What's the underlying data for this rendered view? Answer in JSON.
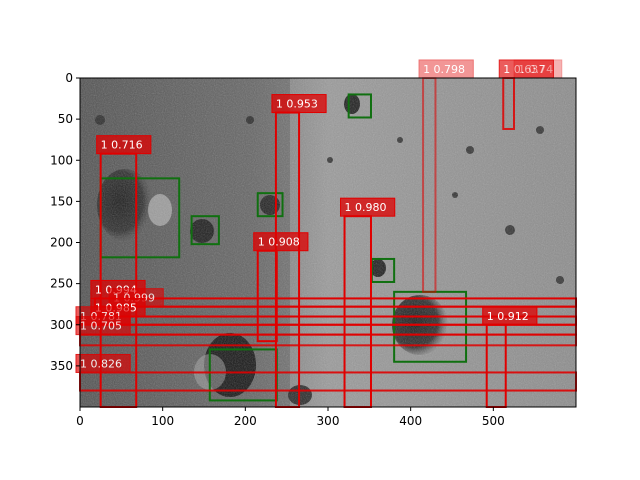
{
  "image": {
    "description_icon": "lunar-surface-photo",
    "width_units": 600,
    "height_units": 400
  },
  "axes": {
    "x_ticks": [
      "0",
      "100",
      "200",
      "300",
      "400",
      "500"
    ],
    "x_tick_values": [
      0,
      100,
      200,
      300,
      400,
      500
    ],
    "y_ticks": [
      "0",
      "50",
      "100",
      "150",
      "200",
      "250",
      "300",
      "350"
    ],
    "y_tick_values": [
      0,
      50,
      100,
      150,
      200,
      250,
      300,
      350
    ],
    "xlim": [
      0,
      600
    ],
    "ylim": [
      400,
      0
    ]
  },
  "colors": {
    "prediction": "#e00000",
    "ground_truth": "#107010"
  },
  "ground_truth_boxes": [
    {
      "x1": 25,
      "y1": 122,
      "x2": 120,
      "y2": 218
    },
    {
      "x1": 135,
      "y1": 168,
      "x2": 168,
      "y2": 202
    },
    {
      "x1": 215,
      "y1": 140,
      "x2": 245,
      "y2": 168
    },
    {
      "x1": 325,
      "y1": 20,
      "x2": 352,
      "y2": 48
    },
    {
      "x1": 353,
      "y1": 220,
      "x2": 380,
      "y2": 248
    },
    {
      "x1": 380,
      "y1": 260,
      "x2": 467,
      "y2": 345
    },
    {
      "x1": 157,
      "y1": 330,
      "x2": 238,
      "y2": 392
    }
  ],
  "predictions": [
    {
      "label": "1 0.716",
      "x1": 25,
      "y1": 92,
      "x2": 68,
      "y2": 400,
      "alpha": 1.0
    },
    {
      "label": "1 0.953",
      "x1": 237,
      "y1": 42,
      "x2": 265,
      "y2": 400,
      "alpha": 1.0
    },
    {
      "label": "1 0.798",
      "x1": 415,
      "y1": 0,
      "x2": 430,
      "y2": 260,
      "alpha": 0.55
    },
    {
      "label": "1 0.637",
      "x1": 512,
      "y1": 0,
      "x2": 525,
      "y2": 62,
      "alpha": 0.85
    },
    {
      "label": "1 0.74",
      "x1": 530,
      "y1": 0,
      "x2": 548,
      "y2": 0,
      "alpha": 0.4
    },
    {
      "label": "1 0.980",
      "x1": 320,
      "y1": 168,
      "x2": 352,
      "y2": 400,
      "alpha": 1.0
    },
    {
      "label": "1 0.908",
      "x1": 215,
      "y1": 210,
      "x2": 238,
      "y2": 320,
      "alpha": 1.0
    },
    {
      "label": "1 0.994",
      "x1": 18,
      "y1": 268,
      "x2": 600,
      "y2": 278,
      "alpha": 1.0
    },
    {
      "label": "1 0.999",
      "x1": 40,
      "y1": 278,
      "x2": 600,
      "y2": 290,
      "alpha": 0.8
    },
    {
      "label": "1 0.985",
      "x1": 18,
      "y1": 290,
      "x2": 600,
      "y2": 300,
      "alpha": 1.0
    },
    {
      "label": "1 0.781",
      "x1": 0,
      "y1": 300,
      "x2": 600,
      "y2": 312,
      "alpha": 0.85
    },
    {
      "label": "1 0.705",
      "x1": 0,
      "y1": 312,
      "x2": 600,
      "y2": 325,
      "alpha": 0.85
    },
    {
      "label": "1 0.912",
      "x1": 492,
      "y1": 300,
      "x2": 515,
      "y2": 400,
      "alpha": 1.0
    },
    {
      "label": "1 0.826",
      "x1": 0,
      "y1": 358,
      "x2": 600,
      "y2": 380,
      "alpha": 0.9
    }
  ]
}
